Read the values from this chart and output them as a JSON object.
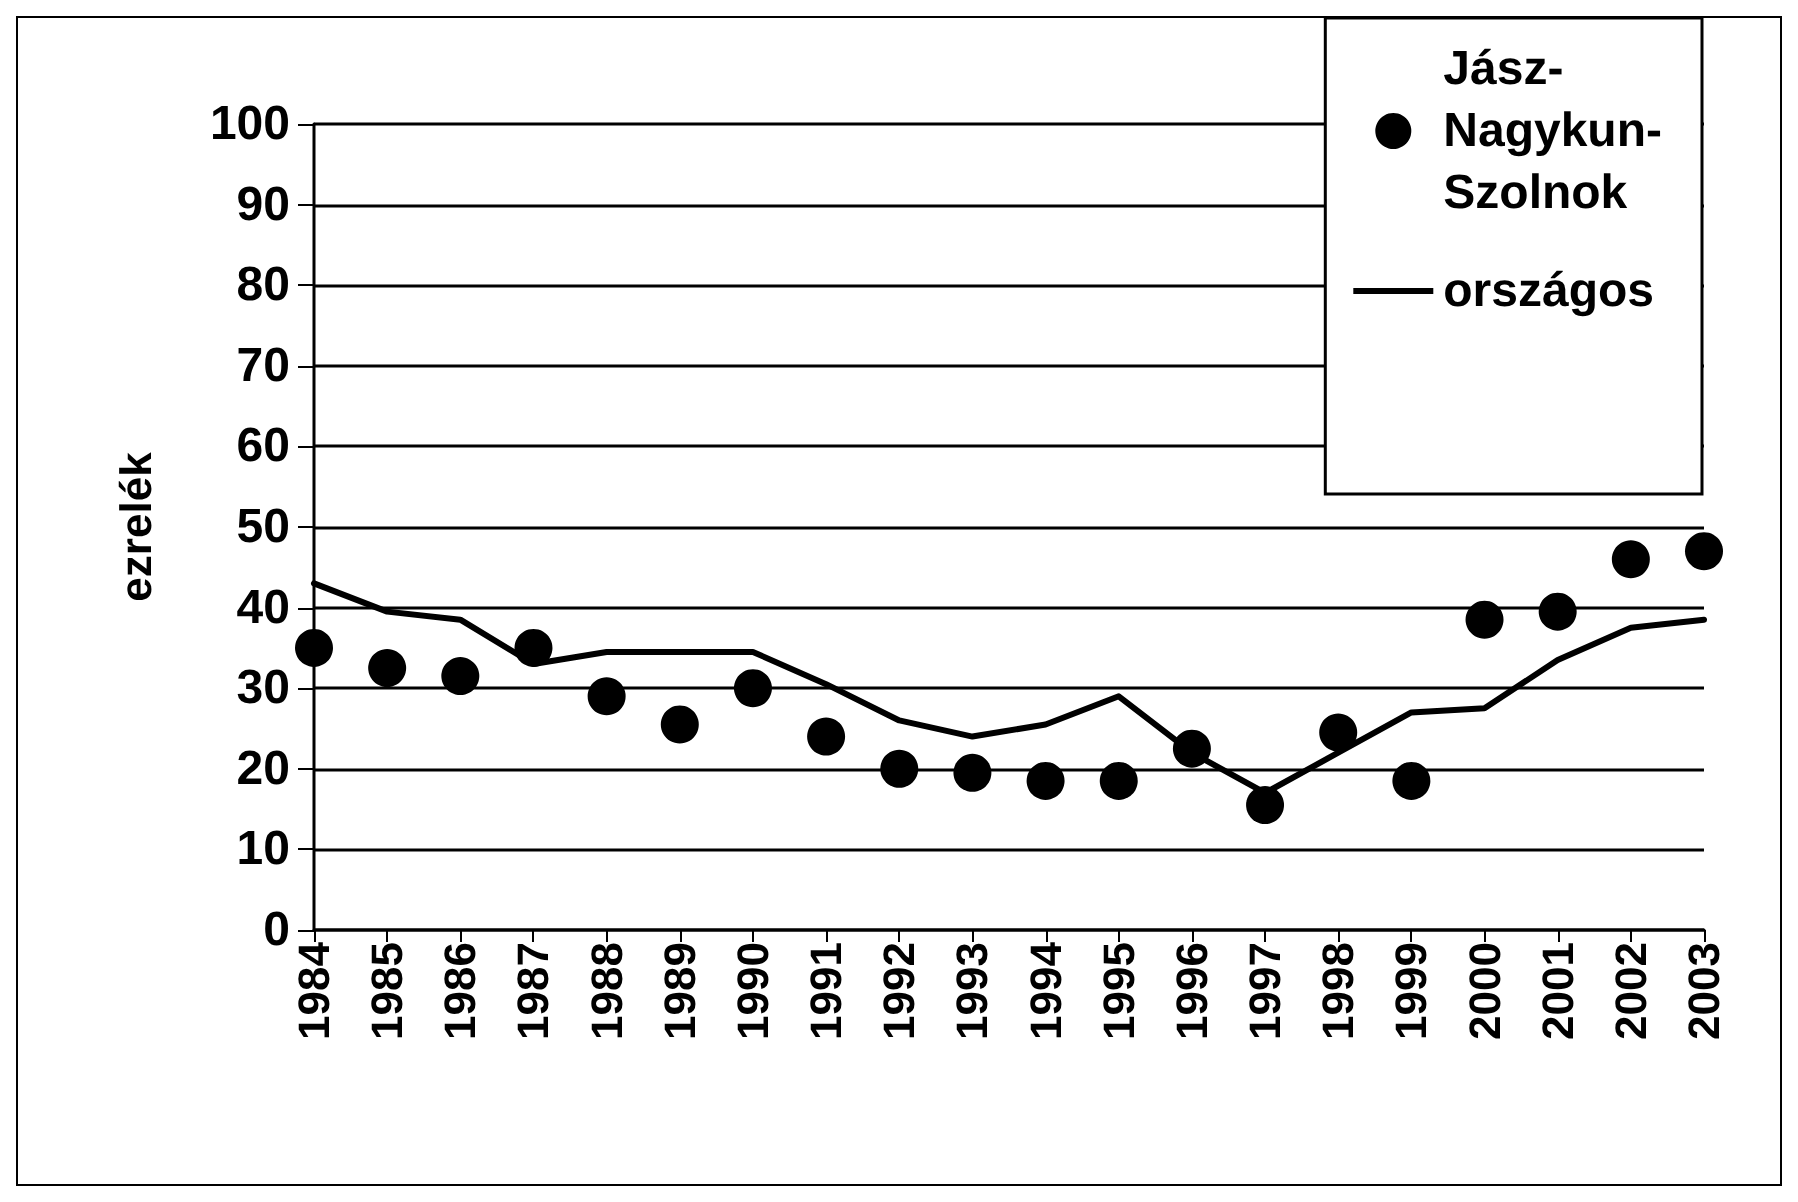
{
  "chart_data": {
    "type": "scatter",
    "ylabel": "ezrelék",
    "categories": [
      "1984",
      "1985",
      "1986",
      "1987",
      "1988",
      "1989",
      "1990",
      "1991",
      "1992",
      "1993",
      "1994",
      "1995",
      "1996",
      "1997",
      "1998",
      "1999",
      "2000",
      "2001",
      "2002",
      "2003"
    ],
    "series": [
      {
        "name": "Jász-Nagykun-Szolnok",
        "color": "#000000",
        "marker": "circle",
        "values": [
          35,
          32.5,
          31.5,
          35,
          29,
          25.5,
          30,
          24,
          20,
          19.5,
          18.5,
          18.5,
          22.5,
          15.5,
          24.5,
          18.5,
          38.5,
          39.5,
          46,
          47
        ]
      },
      {
        "name": "országos",
        "type": "line",
        "color": "#000000",
        "marker": "none",
        "values": [
          43,
          39.5,
          38.5,
          33,
          34.5,
          34.5,
          34.5,
          30.5,
          26,
          24,
          25.5,
          29,
          22,
          17,
          22,
          27,
          27.5,
          33.5,
          37.5,
          38.5
        ]
      }
    ],
    "ylim": [
      0,
      100
    ],
    "yticks": [
      0,
      10,
      20,
      30,
      40,
      50,
      60,
      70,
      80,
      90,
      100
    ],
    "grid": "y",
    "legend": "top right"
  }
}
